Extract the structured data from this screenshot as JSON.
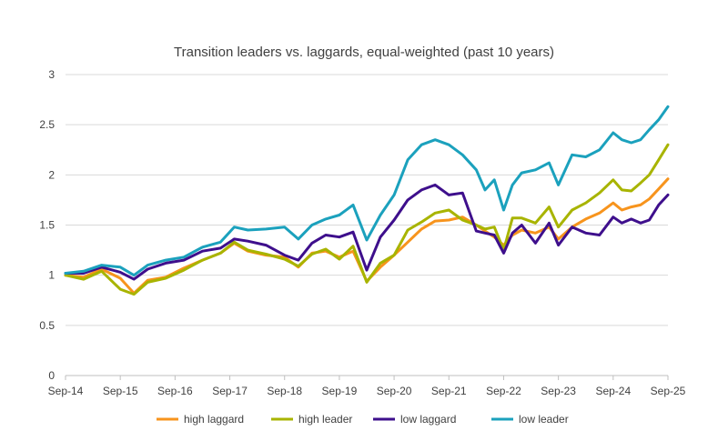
{
  "chart_data": {
    "type": "line",
    "title": "Transition leaders vs. laggards, equal-weighted (past 10 years)",
    "xlabel": "",
    "ylabel": "",
    "ylim": [
      0,
      3
    ],
    "yticks": [
      0,
      0.5,
      1,
      1.5,
      2,
      2.5,
      3
    ],
    "ytick_labels": [
      "0",
      "0.5",
      "1",
      "1.5",
      "2",
      "2.5",
      "3"
    ],
    "x_range": [
      2014.67,
      2025.67
    ],
    "xticks": [
      2014.67,
      2015.67,
      2016.67,
      2017.67,
      2018.67,
      2019.67,
      2020.67,
      2021.67,
      2022.67,
      2023.67,
      2024.67,
      2025.67
    ],
    "xtick_labels": [
      "Sep-14",
      "Sep-15",
      "Sep-16",
      "Sep-17",
      "Sep-18",
      "Sep-19",
      "Sep-20",
      "Sep-21",
      "Sep-22",
      "Sep-23",
      "Sep-24",
      "Sep-25"
    ],
    "grid": "horizontal",
    "legend_position": "bottom",
    "series": [
      {
        "name": "high laggard",
        "color": "#F7941D",
        "x": [
          2014.67,
          2015.0,
          2015.33,
          2015.67,
          2015.92,
          2016.17,
          2016.5,
          2016.83,
          2017.17,
          2017.5,
          2017.75,
          2018.0,
          2018.33,
          2018.67,
          2018.92,
          2019.17,
          2019.42,
          2019.67,
          2019.92,
          2020.17,
          2020.42,
          2020.67,
          2020.92,
          2021.17,
          2021.42,
          2021.67,
          2021.92,
          2022.17,
          2022.33,
          2022.5,
          2022.67,
          2022.83,
          2023.0,
          2023.25,
          2023.5,
          2023.67,
          2023.92,
          2024.17,
          2024.42,
          2024.67,
          2024.83,
          2025.0,
          2025.17,
          2025.33,
          2025.5,
          2025.67
        ],
        "y": [
          1.0,
          0.98,
          1.06,
          0.97,
          0.82,
          0.95,
          0.98,
          1.07,
          1.15,
          1.22,
          1.32,
          1.24,
          1.2,
          1.18,
          1.08,
          1.22,
          1.24,
          1.18,
          1.24,
          0.94,
          1.08,
          1.2,
          1.33,
          1.46,
          1.54,
          1.55,
          1.58,
          1.5,
          1.44,
          1.38,
          1.3,
          1.4,
          1.45,
          1.42,
          1.48,
          1.36,
          1.48,
          1.56,
          1.62,
          1.72,
          1.65,
          1.68,
          1.7,
          1.76,
          1.86,
          1.96
        ]
      },
      {
        "name": "high leader",
        "color": "#A8B400",
        "x": [
          2014.67,
          2015.0,
          2015.33,
          2015.67,
          2015.92,
          2016.17,
          2016.5,
          2016.83,
          2017.17,
          2017.5,
          2017.75,
          2018.0,
          2018.33,
          2018.67,
          2018.92,
          2019.17,
          2019.42,
          2019.67,
          2019.92,
          2020.17,
          2020.42,
          2020.67,
          2020.92,
          2021.17,
          2021.42,
          2021.67,
          2021.92,
          2022.17,
          2022.33,
          2022.5,
          2022.67,
          2022.83,
          2023.0,
          2023.25,
          2023.5,
          2023.67,
          2023.92,
          2024.17,
          2024.42,
          2024.67,
          2024.83,
          2025.0,
          2025.17,
          2025.33,
          2025.5,
          2025.67
        ],
        "y": [
          1.0,
          0.96,
          1.04,
          0.86,
          0.81,
          0.93,
          0.97,
          1.05,
          1.15,
          1.22,
          1.33,
          1.25,
          1.21,
          1.16,
          1.09,
          1.21,
          1.26,
          1.16,
          1.29,
          0.93,
          1.12,
          1.2,
          1.45,
          1.53,
          1.62,
          1.65,
          1.55,
          1.5,
          1.46,
          1.48,
          1.25,
          1.57,
          1.57,
          1.52,
          1.68,
          1.48,
          1.65,
          1.72,
          1.82,
          1.95,
          1.85,
          1.84,
          1.92,
          2.0,
          2.15,
          2.3
        ]
      },
      {
        "name": "low laggard",
        "color": "#3E0F8C",
        "x": [
          2014.67,
          2015.0,
          2015.33,
          2015.67,
          2015.92,
          2016.17,
          2016.5,
          2016.83,
          2017.17,
          2017.5,
          2017.75,
          2018.0,
          2018.33,
          2018.67,
          2018.92,
          2019.17,
          2019.42,
          2019.67,
          2019.92,
          2020.17,
          2020.42,
          2020.67,
          2020.92,
          2021.17,
          2021.42,
          2021.67,
          2021.92,
          2022.17,
          2022.33,
          2022.5,
          2022.67,
          2022.83,
          2023.0,
          2023.25,
          2023.5,
          2023.67,
          2023.92,
          2024.17,
          2024.42,
          2024.67,
          2024.83,
          2025.0,
          2025.17,
          2025.33,
          2025.5,
          2025.67
        ],
        "y": [
          1.02,
          1.02,
          1.08,
          1.03,
          0.96,
          1.06,
          1.12,
          1.15,
          1.24,
          1.27,
          1.36,
          1.34,
          1.3,
          1.2,
          1.15,
          1.32,
          1.4,
          1.38,
          1.43,
          1.05,
          1.38,
          1.55,
          1.75,
          1.85,
          1.9,
          1.8,
          1.82,
          1.44,
          1.42,
          1.4,
          1.22,
          1.42,
          1.5,
          1.32,
          1.52,
          1.3,
          1.48,
          1.42,
          1.4,
          1.58,
          1.52,
          1.56,
          1.52,
          1.55,
          1.7,
          1.8
        ]
      },
      {
        "name": "low leader",
        "color": "#1BA1BD",
        "x": [
          2014.67,
          2015.0,
          2015.33,
          2015.67,
          2015.92,
          2016.17,
          2016.5,
          2016.83,
          2017.17,
          2017.5,
          2017.75,
          2018.0,
          2018.33,
          2018.67,
          2018.92,
          2019.17,
          2019.42,
          2019.67,
          2019.92,
          2020.17,
          2020.42,
          2020.67,
          2020.92,
          2021.17,
          2021.42,
          2021.67,
          2021.92,
          2022.17,
          2022.33,
          2022.5,
          2022.67,
          2022.83,
          2023.0,
          2023.25,
          2023.5,
          2023.67,
          2023.92,
          2024.17,
          2024.42,
          2024.67,
          2024.83,
          2025.0,
          2025.17,
          2025.33,
          2025.5,
          2025.67
        ],
        "y": [
          1.02,
          1.04,
          1.1,
          1.08,
          1.0,
          1.1,
          1.15,
          1.18,
          1.28,
          1.33,
          1.48,
          1.45,
          1.46,
          1.48,
          1.36,
          1.5,
          1.56,
          1.6,
          1.7,
          1.35,
          1.6,
          1.8,
          2.15,
          2.3,
          2.35,
          2.3,
          2.2,
          2.05,
          1.85,
          1.95,
          1.65,
          1.9,
          2.02,
          2.05,
          2.12,
          1.9,
          2.2,
          2.18,
          2.25,
          2.42,
          2.35,
          2.32,
          2.35,
          2.45,
          2.55,
          2.68
        ]
      }
    ]
  }
}
